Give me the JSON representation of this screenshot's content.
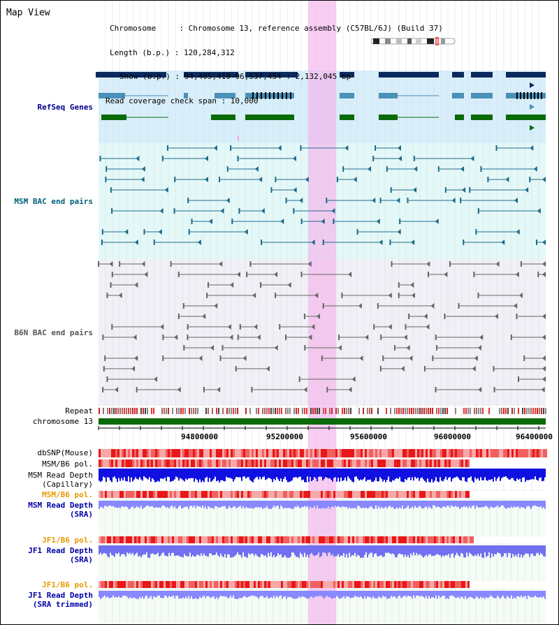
{
  "page_title": "Map View",
  "info": {
    "chromosome": "Chromosome     : Chromosome 13, reference assembly (C57BL/6J) (Build 37)",
    "length": "Length (b.p.) : 120,284,312",
    "show": "Show (b.p.) : 94,405,410-96,537,454 : 2,132,045 bp",
    "coverage": "Read coverage check span : 10,000"
  },
  "tracks": {
    "refseq": "RefSeq Genes",
    "msm_bac": "MSM BAC end pairs",
    "b6n_bac": "B6N BAC end pairs",
    "repeat": "Repeat",
    "chromosome": "chromosome 13",
    "dbsnp": "dbSNP(Mouse)",
    "msm_b6_pol": "MSM/B6 pol.",
    "msm_depth_cap_1": "MSM Read Depth",
    "msm_depth_cap_2": "(Capillary)",
    "msm_b6_pol_2": "MSM/B6 pol.",
    "msm_depth_sra_1": "MSM Read Depth",
    "msm_depth_sra_2": "(SRA)",
    "jf1_b6_pol": "JF1/B6 pol.",
    "jf1_depth_sra_1": "JF1 Read Depth",
    "jf1_depth_sra_2": "(SRA)",
    "jf1_b6_pol_2": "JF1/B6 pol.",
    "jf1_depth_trim_1": "JF1 Read Depth",
    "jf1_depth_trim_2": "(SRA trimmed)"
  },
  "axis_ticks": [
    "94800000",
    "95200000",
    "95600000",
    "96000000",
    "96400000"
  ],
  "colors": {
    "highlight": "#f8c8f0",
    "refseq_bg": "#d8eefa",
    "msm_bg": "#e4f8f8",
    "b6n_bg": "#f0f0f6",
    "navy": "#0a2a5e",
    "teal": "#4a90b8",
    "green": "#0a6a0a",
    "depth_blue": "#1010e0",
    "depth_light": "#8888ff"
  }
}
